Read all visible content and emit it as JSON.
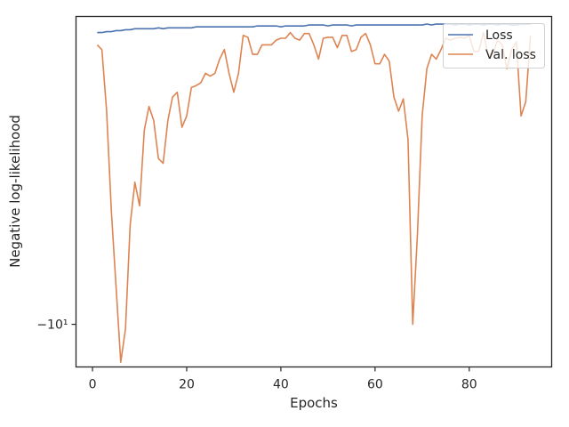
{
  "chart_data": {
    "type": "line",
    "xlabel": "Epochs",
    "ylabel": "Negative log-likelihood",
    "xlim": [
      -3.5,
      97.5
    ],
    "ylim": [
      -10.45,
      -6.75
    ],
    "x_ticks": [
      0,
      20,
      40,
      60,
      80
    ],
    "y_ticks": [
      {
        "value": -10,
        "label": "−10¹"
      }
    ],
    "legend_position": "upper right",
    "grid": false,
    "series": [
      {
        "name": "Loss",
        "color": "#4c72b0",
        "x": [
          1,
          2,
          3,
          4,
          5,
          6,
          7,
          8,
          9,
          10,
          11,
          12,
          13,
          14,
          15,
          16,
          17,
          18,
          19,
          20,
          21,
          22,
          23,
          24,
          25,
          26,
          27,
          28,
          29,
          30,
          31,
          32,
          33,
          34,
          35,
          36,
          37,
          38,
          39,
          40,
          41,
          42,
          43,
          44,
          45,
          46,
          47,
          48,
          49,
          50,
          51,
          52,
          53,
          54,
          55,
          56,
          57,
          58,
          59,
          60,
          61,
          62,
          63,
          64,
          65,
          66,
          67,
          68,
          69,
          70,
          71,
          72,
          73,
          74,
          75,
          76,
          77,
          78,
          79,
          80,
          81,
          82,
          83,
          84,
          85,
          86,
          87,
          88,
          89,
          90,
          91,
          92,
          93
        ],
        "values": [
          -6.92,
          -6.92,
          -6.91,
          -6.91,
          -6.9,
          -6.9,
          -6.89,
          -6.89,
          -6.88,
          -6.88,
          -6.88,
          -6.88,
          -6.88,
          -6.87,
          -6.88,
          -6.87,
          -6.87,
          -6.87,
          -6.87,
          -6.87,
          -6.87,
          -6.86,
          -6.86,
          -6.86,
          -6.86,
          -6.86,
          -6.86,
          -6.86,
          -6.86,
          -6.86,
          -6.86,
          -6.86,
          -6.86,
          -6.86,
          -6.85,
          -6.85,
          -6.85,
          -6.85,
          -6.85,
          -6.86,
          -6.85,
          -6.85,
          -6.85,
          -6.85,
          -6.85,
          -6.84,
          -6.84,
          -6.84,
          -6.84,
          -6.85,
          -6.84,
          -6.84,
          -6.84,
          -6.84,
          -6.85,
          -6.84,
          -6.84,
          -6.84,
          -6.84,
          -6.84,
          -6.84,
          -6.84,
          -6.84,
          -6.84,
          -6.84,
          -6.84,
          -6.84,
          -6.84,
          -6.84,
          -6.84,
          -6.83,
          -6.84,
          -6.83,
          -6.83,
          -6.83,
          -6.83,
          -6.84,
          -6.83,
          -6.83,
          -6.84,
          -6.83,
          -6.83,
          -6.84,
          -6.83,
          -6.83,
          -6.84,
          -6.83,
          -6.83,
          -6.84,
          -6.84,
          -6.83,
          -6.83,
          -6.83
        ]
      },
      {
        "name": "Val. loss",
        "color": "#dd8452",
        "x": [
          1,
          2,
          3,
          4,
          5,
          6,
          7,
          8,
          9,
          10,
          11,
          12,
          13,
          14,
          15,
          16,
          17,
          18,
          19,
          20,
          21,
          22,
          23,
          24,
          25,
          26,
          27,
          28,
          29,
          30,
          31,
          32,
          33,
          34,
          35,
          36,
          37,
          38,
          39,
          40,
          41,
          42,
          43,
          44,
          45,
          46,
          47,
          48,
          49,
          50,
          51,
          52,
          53,
          54,
          55,
          56,
          57,
          58,
          59,
          60,
          61,
          62,
          63,
          64,
          65,
          66,
          67,
          68,
          69,
          70,
          71,
          72,
          73,
          74,
          75,
          76,
          77,
          78,
          79,
          80,
          81,
          82,
          83,
          84,
          85,
          86,
          87,
          88,
          89,
          90,
          91,
          92,
          93
        ],
        "values": [
          -7.05,
          -7.1,
          -7.75,
          -8.8,
          -9.6,
          -10.4,
          -10.05,
          -8.95,
          -8.5,
          -8.75,
          -7.95,
          -7.7,
          -7.85,
          -8.25,
          -8.3,
          -7.85,
          -7.6,
          -7.55,
          -7.92,
          -7.8,
          -7.5,
          -7.48,
          -7.45,
          -7.35,
          -7.38,
          -7.35,
          -7.2,
          -7.1,
          -7.35,
          -7.55,
          -7.35,
          -6.95,
          -6.97,
          -7.15,
          -7.15,
          -7.05,
          -7.05,
          -7.05,
          -7.0,
          -6.98,
          -6.98,
          -6.92,
          -6.98,
          -7.0,
          -6.93,
          -6.93,
          -7.05,
          -7.2,
          -6.98,
          -6.97,
          -6.97,
          -7.08,
          -6.95,
          -6.95,
          -7.12,
          -7.1,
          -6.97,
          -6.93,
          -7.05,
          -7.25,
          -7.25,
          -7.15,
          -7.22,
          -7.6,
          -7.75,
          -7.62,
          -8.05,
          -10.0,
          -9.05,
          -7.8,
          -7.3,
          -7.15,
          -7.2,
          -7.1,
          -6.98,
          -7.0,
          -6.98,
          -6.97,
          -6.98,
          -6.95,
          -7.12,
          -7.12,
          -6.92,
          -7.15,
          -7.15,
          -7.0,
          -7.05,
          -7.3,
          -7.1,
          -7.02,
          -7.8,
          -7.65,
          -6.95
        ]
      }
    ]
  }
}
